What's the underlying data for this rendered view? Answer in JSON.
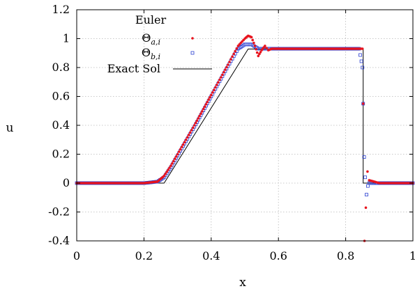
{
  "chart_data": {
    "type": "line",
    "title": "",
    "xlabel": "x",
    "ylabel": "u",
    "xlim": [
      0,
      1
    ],
    "ylim": [
      -0.4,
      1.2
    ],
    "grid": true,
    "legend_placement": "top-left",
    "legend_title": "Euler",
    "x_ticks": [
      "0",
      "0.2",
      "0.4",
      "0.6",
      "0.8",
      "1"
    ],
    "y_ticks": [
      "-0.4",
      "-0.2",
      "0",
      "0.2",
      "0.4",
      "0.6",
      "0.8",
      "1",
      "1.2"
    ],
    "x_tick_values": [
      0,
      0.2,
      0.4,
      0.6,
      0.8,
      1
    ],
    "y_tick_values": [
      -0.4,
      -0.2,
      0,
      0.2,
      0.4,
      0.6,
      0.8,
      1,
      1.2
    ],
    "series": [
      {
        "name": "Θ_{a,i}",
        "name_main": "Θ",
        "name_sub": "a,i",
        "style": "dots",
        "color": "#e8141e",
        "x": [
          0.0,
          0.05,
          0.1,
          0.15,
          0.2,
          0.24,
          0.26,
          0.28,
          0.3,
          0.35,
          0.4,
          0.45,
          0.48,
          0.5,
          0.51,
          0.52,
          0.53,
          0.54,
          0.55,
          0.56,
          0.57,
          0.58,
          0.6,
          0.65,
          0.7,
          0.75,
          0.8,
          0.84,
          0.85,
          0.852,
          0.856,
          0.86,
          0.865,
          0.87,
          0.9,
          1.0
        ],
        "y": [
          0.0,
          0.0,
          0.0,
          0.0,
          0.0,
          0.01,
          0.05,
          0.12,
          0.2,
          0.4,
          0.61,
          0.82,
          0.95,
          1.0,
          1.02,
          1.01,
          0.95,
          0.88,
          0.92,
          0.95,
          0.92,
          0.93,
          0.93,
          0.93,
          0.93,
          0.93,
          0.93,
          0.93,
          0.93,
          0.55,
          -0.4,
          -0.17,
          0.08,
          0.02,
          0.0,
          0.0
        ]
      },
      {
        "name": "Θ_{b,i}",
        "name_main": "Θ",
        "name_sub": "b,i",
        "style": "squares",
        "color": "#2a3fd1",
        "x": [
          0.0,
          0.05,
          0.1,
          0.15,
          0.2,
          0.24,
          0.26,
          0.28,
          0.3,
          0.35,
          0.4,
          0.45,
          0.48,
          0.5,
          0.52,
          0.54,
          0.56,
          0.58,
          0.6,
          0.65,
          0.7,
          0.75,
          0.8,
          0.84,
          0.85,
          0.852,
          0.855,
          0.858,
          0.862,
          0.866,
          0.87,
          0.9,
          1.0
        ],
        "y": [
          0.0,
          0.0,
          0.0,
          0.0,
          0.0,
          0.01,
          0.04,
          0.11,
          0.19,
          0.39,
          0.6,
          0.81,
          0.93,
          0.96,
          0.96,
          0.93,
          0.93,
          0.93,
          0.93,
          0.93,
          0.93,
          0.93,
          0.93,
          0.93,
          0.8,
          0.55,
          0.18,
          0.04,
          -0.08,
          -0.02,
          0.0,
          0.0,
          0.0
        ]
      },
      {
        "name": "Exact Sol",
        "style": "line",
        "color": "#000000",
        "x": [
          0.0,
          0.26,
          0.51,
          0.852,
          0.852,
          1.0
        ],
        "y": [
          0.0,
          0.0,
          0.928,
          0.928,
          0.0,
          0.0
        ]
      }
    ]
  }
}
